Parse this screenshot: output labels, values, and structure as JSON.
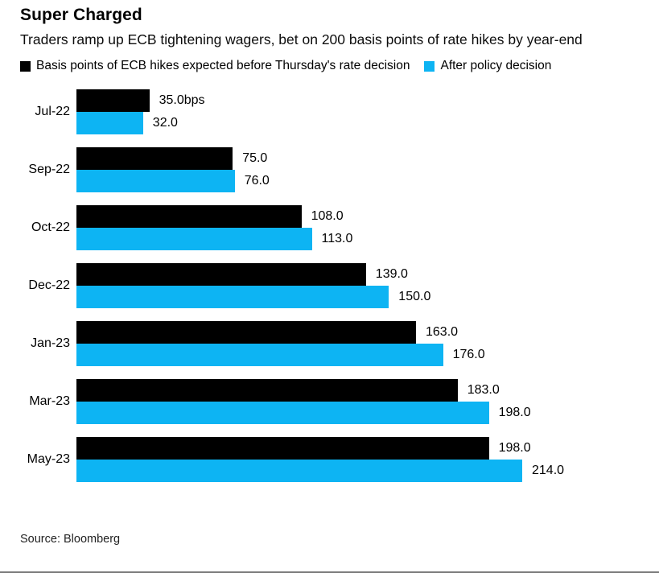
{
  "header": {
    "title": "Super Charged",
    "subtitle": "Traders ramp up ECB tightening wagers, bet on 200 basis points of rate hikes by year-end"
  },
  "legend": [
    {
      "label": "Basis points of ECB hikes expected before Thursday's rate decision",
      "color": "#000000",
      "icon": "square-swatch-icon"
    },
    {
      "label": "After policy decision",
      "color": "#0db4f3",
      "icon": "square-swatch-icon"
    }
  ],
  "chart_data": {
    "type": "bar",
    "orientation": "horizontal",
    "title": "Super Charged",
    "categories": [
      "Jul-22",
      "Sep-22",
      "Oct-22",
      "Dec-22",
      "Jan-23",
      "Mar-23",
      "May-23"
    ],
    "series": [
      {
        "name": "Basis points of ECB hikes expected before Thursday's rate decision",
        "color": "#000000",
        "values": [
          35.0,
          75.0,
          108.0,
          139.0,
          163.0,
          183.0,
          198.0
        ],
        "labels": [
          "35.0bps",
          "75.0",
          "108.0",
          "139.0",
          "163.0",
          "183.0",
          "198.0"
        ]
      },
      {
        "name": "After policy decision",
        "color": "#0db4f3",
        "values": [
          32.0,
          76.0,
          113.0,
          150.0,
          176.0,
          198.0,
          214.0
        ],
        "labels": [
          "32.0",
          "76.0",
          "113.0",
          "150.0",
          "176.0",
          "198.0",
          "214.0"
        ]
      }
    ],
    "xlim": [
      0,
      214
    ],
    "unit": "basis points",
    "grid": false,
    "legend_position": "top",
    "value_labels": "outside-end"
  },
  "footer": {
    "source": "Source: Bloomberg"
  }
}
